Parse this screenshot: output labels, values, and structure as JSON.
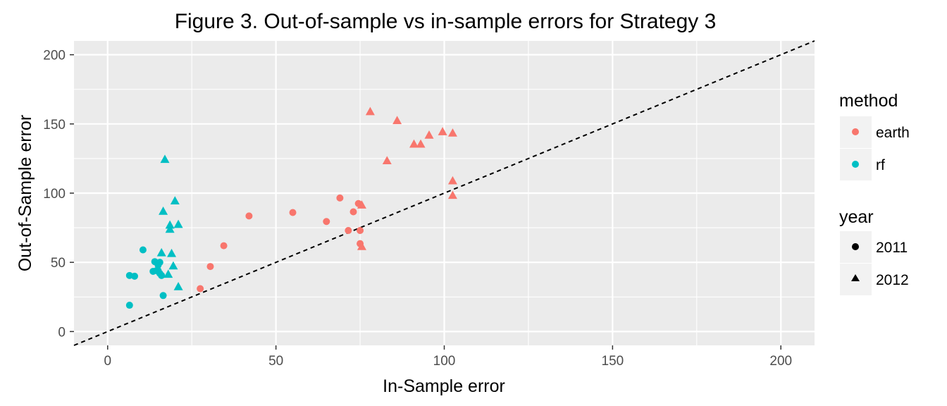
{
  "chart_data": {
    "type": "scatter",
    "title": "Figure 3. Out-of-sample vs in-sample errors for Strategy 3",
    "xlabel": "In-Sample error",
    "ylabel": "Out-of-Sample error",
    "xlim": [
      -10,
      210
    ],
    "ylim": [
      -10,
      210
    ],
    "x_ticks": [
      0,
      50,
      100,
      150,
      200
    ],
    "y_ticks": [
      0,
      50,
      100,
      150,
      200
    ],
    "x_tick_labels": [
      "0",
      "50",
      "100",
      "150",
      "200"
    ],
    "y_tick_labels": [
      "0",
      "50",
      "100",
      "150",
      "200"
    ],
    "grid": true,
    "reference_line": {
      "type": "identity",
      "style": "dashed",
      "color": "#000000"
    },
    "background": "#ebebeb",
    "legend": {
      "placement": "right",
      "color_title": "method",
      "shape_title": "year",
      "colors": [
        {
          "label": "earth",
          "color": "#f8766d"
        },
        {
          "label": "rf",
          "color": "#00bfc4"
        }
      ],
      "shapes": [
        {
          "label": "2011",
          "shape": "circle"
        },
        {
          "label": "2012",
          "shape": "triangle"
        }
      ]
    },
    "series": [
      {
        "method": "earth",
        "year": "2011",
        "color": "#f8766d",
        "shape": "circle",
        "points": [
          [
            27.5,
            31
          ],
          [
            30.5,
            47
          ],
          [
            34.5,
            62
          ],
          [
            42,
            83.5
          ],
          [
            55,
            86
          ],
          [
            65,
            79.5
          ],
          [
            69,
            96.5
          ],
          [
            71.5,
            73
          ],
          [
            73,
            86.5
          ],
          [
            74.5,
            92.5
          ],
          [
            75,
            73
          ],
          [
            75,
            63.5
          ]
        ]
      },
      {
        "method": "earth",
        "year": "2012",
        "color": "#f8766d",
        "shape": "triangle",
        "points": [
          [
            75.5,
            91.5
          ],
          [
            75.5,
            61.5
          ],
          [
            78,
            159
          ],
          [
            83,
            123.5
          ],
          [
            86,
            152.5
          ],
          [
            91,
            135.5
          ],
          [
            93,
            135.5
          ],
          [
            95.5,
            142
          ],
          [
            99.5,
            144.5
          ],
          [
            102.5,
            143.5
          ],
          [
            102.5,
            109
          ],
          [
            102.5,
            98.5
          ]
        ]
      },
      {
        "method": "rf",
        "year": "2011",
        "color": "#00bfc4",
        "shape": "circle",
        "points": [
          [
            6.5,
            40.5
          ],
          [
            6.5,
            19
          ],
          [
            8,
            40
          ],
          [
            10.5,
            59
          ],
          [
            13.5,
            43.5
          ],
          [
            14,
            50.5
          ],
          [
            14.5,
            44
          ],
          [
            15,
            48
          ],
          [
            15,
            44
          ],
          [
            15.5,
            50
          ],
          [
            15.5,
            42
          ],
          [
            16,
            40.5
          ],
          [
            16.5,
            26
          ]
        ]
      },
      {
        "method": "rf",
        "year": "2012",
        "color": "#00bfc4",
        "shape": "triangle",
        "points": [
          [
            16,
            57
          ],
          [
            16.5,
            87
          ],
          [
            17,
            124.5
          ],
          [
            18,
            41.5
          ],
          [
            18.5,
            77
          ],
          [
            18.5,
            74
          ],
          [
            19,
            56.5
          ],
          [
            19.5,
            47.5
          ],
          [
            20,
            94.5
          ],
          [
            21,
            32.5
          ],
          [
            21,
            77.5
          ]
        ]
      }
    ]
  }
}
